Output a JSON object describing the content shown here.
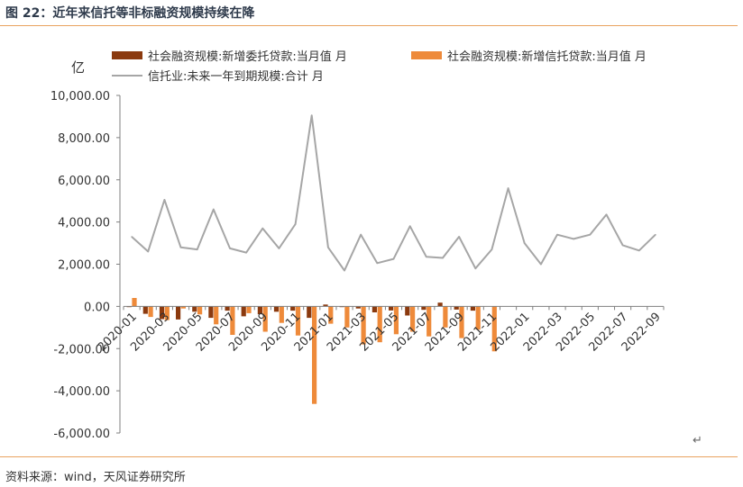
{
  "header": {
    "title": "图 22：近年来信托等非标融资规模持续在降"
  },
  "footer": {
    "source": "资料来源：wind，天风证券研究所"
  },
  "colors": {
    "series1": "#8b3a0f",
    "series2": "#ee8a3a",
    "series3": "#a6a6a6",
    "rule": "#e9a25f",
    "axis": "#7f7f7f"
  },
  "chart_data": {
    "type": "bar",
    "title": "",
    "ylabel": "亿",
    "ylim": [
      -6000,
      10000
    ],
    "yticks": [
      10000,
      8000,
      6000,
      4000,
      2000,
      0,
      -2000,
      -4000,
      -6000
    ],
    "ytick_labels": [
      "10,000.00",
      "8,000.00",
      "6,000.00",
      "4,000.00",
      "2,000.00",
      "0.00",
      "-2,000.00",
      "-4,000.00",
      "-6,000.00"
    ],
    "xtick_labels": [
      "2020-01",
      "2020-03",
      "2020-05",
      "2020-07",
      "2020-09",
      "2020-11",
      "2021-01",
      "2021-03",
      "2021-05",
      "2021-07",
      "2021-09",
      "2021-11",
      "2022-01",
      "2022-03",
      "2022-05",
      "2022-07",
      "2022-09"
    ],
    "categories": [
      "2020-01",
      "2020-02",
      "2020-03",
      "2020-04",
      "2020-05",
      "2020-06",
      "2020-07",
      "2020-08",
      "2020-09",
      "2020-10",
      "2020-11",
      "2020-12",
      "2021-01",
      "2021-02",
      "2021-03",
      "2021-04",
      "2021-05",
      "2021-06",
      "2021-07",
      "2021-08",
      "2021-09",
      "2021-10",
      "2021-11",
      "2021-12",
      "2022-01",
      "2022-02",
      "2022-03",
      "2022-04",
      "2022-05",
      "2022-06",
      "2022-07",
      "2022-08",
      "2022-09"
    ],
    "legend": "top",
    "series": [
      {
        "name": "社会融资规模:新增委托贷款:当月值 月",
        "type": "bar",
        "values": [
          -30,
          -350,
          -600,
          -620,
          -250,
          -540,
          -200,
          -470,
          -370,
          -250,
          -200,
          -540,
          90,
          -10,
          -100,
          -280,
          -190,
          -430,
          -160,
          180,
          -150,
          -200,
          null,
          null,
          null,
          null,
          null,
          null,
          null,
          null,
          null,
          null,
          null
        ]
      },
      {
        "name": "社会融资规模:新增信托贷款:当月值 月",
        "type": "bar",
        "values": [
          400,
          -500,
          -650,
          -100,
          -380,
          -850,
          -1350,
          -320,
          -1200,
          -780,
          -1380,
          -4620,
          -820,
          -1000,
          -1800,
          -1700,
          -1320,
          -1200,
          -1420,
          -1000,
          -1500,
          -1100,
          -2130,
          null,
          null,
          null,
          null,
          null,
          null,
          null,
          null,
          null,
          null
        ]
      },
      {
        "name": "信托业:未来一年到期规模:合计 月",
        "type": "line",
        "values": [
          3300,
          2600,
          5050,
          2800,
          2700,
          4600,
          2750,
          2550,
          3700,
          2750,
          3900,
          9050,
          2800,
          1700,
          3400,
          2050,
          2250,
          3800,
          2350,
          2300,
          3300,
          1800,
          2700,
          5600,
          3000,
          2000,
          3400,
          3200,
          3400,
          4350,
          2900,
          2650,
          3400
        ]
      }
    ]
  }
}
